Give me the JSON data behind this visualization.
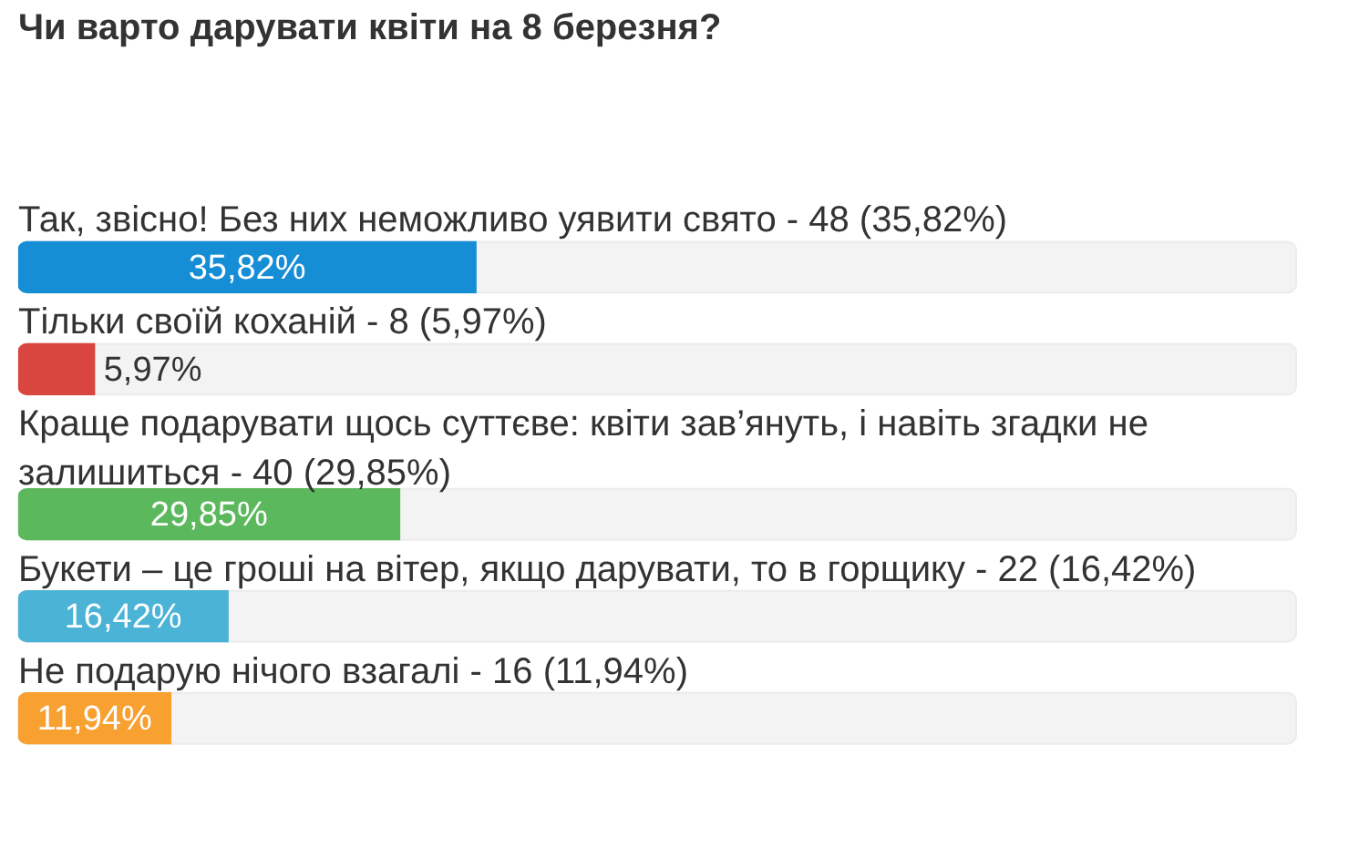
{
  "chart_data": {
    "type": "bar",
    "orientation": "horizontal",
    "title": "Чи варто дарувати квіти на 8 березня?",
    "categories": [
      "Так, звісно! Без них неможливо уявити свято - 48 (35,82%)",
      "Тільки своїй коханій - 8 (5,97%)",
      "Краще подарувати щось суттєве: квіти зав’януть, і навіть згадки не залишиться - 40 (29,85%)",
      "Букети – це гроші на вітер, якщо дарувати, то в горщику - 22 (16,42%)",
      "Не подарую нічого взагалі - 16 (11,94%)"
    ],
    "values": [
      35.82,
      5.97,
      29.85,
      16.42,
      11.94
    ],
    "value_labels": [
      "35,82%",
      "5,97%",
      "29,85%",
      "16,42%",
      "11,94%"
    ],
    "colors": [
      "#168ed6",
      "#d9463f",
      "#5cb85c",
      "#4bb3d6",
      "#f8a030"
    ],
    "xlim": [
      0,
      100
    ],
    "tick_labels": "y"
  }
}
